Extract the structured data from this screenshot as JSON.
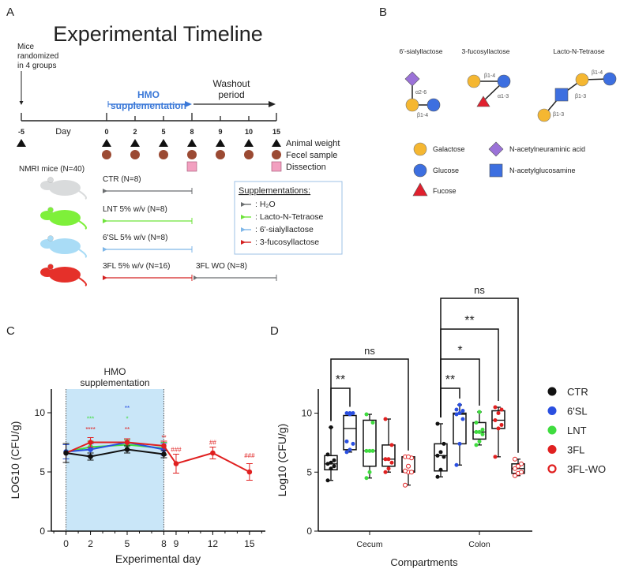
{
  "panel_labels": {
    "a": "A",
    "b": "B",
    "c": "C",
    "d": "D"
  },
  "timeline": {
    "title": "Experimental Timeline",
    "randomized": [
      "Mice",
      "randomized",
      "in 4 groups"
    ],
    "hmo_label": [
      "HMO",
      "supplementation"
    ],
    "washout_label": [
      "Washout",
      "period"
    ],
    "day_label": "Day",
    "days": [
      "-5",
      "0",
      "2",
      "5",
      "8",
      "9",
      "10",
      "15"
    ],
    "legend": {
      "weight": "Animal weight",
      "fecal": "Fecel sample",
      "dissection": "Dissection"
    },
    "cohort": "NMRI mice (N=40)",
    "groups": [
      {
        "label": "CTR (N=8)",
        "color": "#6b6e70",
        "mouse": "#d9dbdc"
      },
      {
        "label": "LNT 5% w/v (N=8)",
        "color": "#6ee33a",
        "mouse": "#7ef03a"
      },
      {
        "label": "6'SL 5% w/v (N=8)",
        "color": "#7fb7e8",
        "mouse": "#a9dcf6"
      },
      {
        "label": "3FL 5% w/v (N=16)",
        "color": "#d42020",
        "mouse": "#e5302a"
      }
    ],
    "washout_group": "3FL WO (N=8)",
    "supp_title": "Supplementations:",
    "supp_items": [
      ": H₂O",
      ": Lacto-N-Tetraose",
      ": 6'-sialyllactose",
      ": 3-fucosyllactose"
    ],
    "colors": {
      "hmo": "#3a78d8",
      "dot": "#9b4a33",
      "dissection": "#f2a0c0"
    }
  },
  "hmo": {
    "names": [
      "6'-sialyllactose",
      "3-fucosyllactose",
      "Lacto-N-Tetraose"
    ],
    "linkages": {
      "sl_a": "α2-6",
      "sl_b": "β1-4",
      "fl_b": "β1-4",
      "fl_a": "α1-3",
      "lnt_1": "β1-4",
      "lnt_2": "β1-3",
      "lnt_3": "β1-3"
    },
    "legend": [
      "Galactose",
      "Glucose",
      "Fucose",
      "N-acetylneuraminic acid",
      "N-acetylglucosamine"
    ],
    "colors": {
      "galactose": "#f5b731",
      "glucose": "#3d6fe0",
      "fucose": "#e0202e",
      "neuac": "#9b72d8",
      "glcnac": "#3d6fe0"
    }
  },
  "chart_data": [
    {
      "type": "line",
      "title": "",
      "shaded_region_label": [
        "HMO",
        "supplementation"
      ],
      "shaded_region": [
        0,
        8
      ],
      "xlabel": "Experimental day",
      "ylabel": "LOG10 (CFU/g)",
      "xticks": [
        0,
        2,
        5,
        8,
        9,
        12,
        15
      ],
      "yticks": [
        0,
        5,
        10
      ],
      "xlim": [
        -1.2,
        16.3
      ],
      "ylim": [
        0,
        12
      ],
      "series": [
        {
          "name": "LNT",
          "color": "#3fdc3f",
          "x": [
            0,
            2,
            5,
            8
          ],
          "y": [
            6.7,
            7.1,
            7.3,
            7.0
          ],
          "err": [
            0.6,
            0.5,
            0.4,
            0.5
          ]
        },
        {
          "name": "6'SL",
          "color": "#2a4fe0",
          "x": [
            0,
            2,
            5,
            8
          ],
          "y": [
            6.7,
            6.9,
            7.5,
            6.9
          ],
          "err": [
            0.6,
            0.5,
            0.3,
            0.5
          ]
        },
        {
          "name": "3FL",
          "color": "#e02020",
          "x": [
            0,
            2,
            5,
            8,
            9,
            12,
            15
          ],
          "y": [
            6.6,
            7.5,
            7.5,
            7.2,
            5.7,
            6.6,
            5.0
          ],
          "err": [
            0.8,
            0.4,
            0.3,
            0.4,
            0.8,
            0.5,
            0.7
          ]
        },
        {
          "name": "CTR",
          "color": "#111111",
          "x": [
            0,
            2,
            5,
            8
          ],
          "y": [
            6.6,
            6.3,
            6.9,
            6.5
          ],
          "err": [
            0.8,
            0.3,
            0.3,
            0.3
          ]
        }
      ],
      "annotations": [
        {
          "x": 2,
          "y": 9.3,
          "text": "***",
          "color": "#3fdc3f"
        },
        {
          "x": 2,
          "y": 8.4,
          "text": "****",
          "color": "#e02020"
        },
        {
          "x": 5,
          "y": 10.2,
          "text": "**",
          "color": "#2a4fe0"
        },
        {
          "x": 5,
          "y": 9.3,
          "text": "*",
          "color": "#3fdc3f"
        },
        {
          "x": 5,
          "y": 8.4,
          "text": "**",
          "color": "#e02020"
        },
        {
          "x": 8,
          "y": 7.7,
          "text": "**",
          "color": "#e02020"
        },
        {
          "x": 9,
          "y": 6.7,
          "text": "###",
          "color": "#e02020"
        },
        {
          "x": 12,
          "y": 7.3,
          "text": "##",
          "color": "#e02020"
        },
        {
          "x": 15,
          "y": 6.2,
          "text": "###",
          "color": "#e02020"
        }
      ]
    },
    {
      "type": "box",
      "xlabel": "Compartments",
      "ylabel": "Log10 (CFU/g)",
      "categories": [
        "Cecum",
        "Colon"
      ],
      "yticks": [
        0,
        5,
        10
      ],
      "ylim": [
        0,
        12
      ],
      "groups": [
        {
          "name": "CTR",
          "color": "#111111",
          "hollow": false
        },
        {
          "name": "6'SL",
          "color": "#2a4fe0",
          "hollow": false
        },
        {
          "name": "LNT",
          "color": "#3fdc3f",
          "hollow": false
        },
        {
          "name": "3FL",
          "color": "#e02020",
          "hollow": false
        },
        {
          "name": "3FL-WO",
          "color": "#e02020",
          "hollow": true
        }
      ],
      "boxes": {
        "Cecum": [
          {
            "min": 4.3,
            "q1": 5.2,
            "median": 5.7,
            "q3": 6.4,
            "max": 8.8,
            "points": [
              4.3,
              5.3,
              5.5,
              5.7,
              5.8,
              6.0,
              6.5,
              8.8
            ]
          },
          {
            "min": 6.7,
            "q1": 6.9,
            "median": 8.7,
            "q3": 9.8,
            "max": 10.0,
            "points": [
              6.7,
              6.9,
              7.4,
              7.6,
              9.9,
              10.0,
              10.0,
              10.0
            ]
          },
          {
            "min": 4.5,
            "q1": 5.5,
            "median": 6.8,
            "q3": 9.4,
            "max": 9.9,
            "points": [
              4.5,
              5.0,
              6.8,
              6.8,
              6.8,
              9.2,
              9.9
            ]
          },
          {
            "min": 5.0,
            "q1": 5.5,
            "median": 6.1,
            "q3": 7.3,
            "max": 9.5,
            "points": [
              5.0,
              5.3,
              5.8,
              6.1,
              6.1,
              7.3,
              9.5
            ]
          },
          {
            "min": 3.9,
            "q1": 5.0,
            "median": 5.1,
            "q3": 6.3,
            "max": 6.3,
            "points": [
              3.9,
              5.0,
              5.0,
              5.1,
              5.5,
              6.2,
              6.3,
              6.3
            ]
          }
        ],
        "Colon": [
          {
            "min": 4.6,
            "q1": 5.1,
            "median": 6.4,
            "q3": 7.4,
            "max": 9.1,
            "points": [
              4.6,
              5.2,
              6.3,
              6.4,
              6.7,
              7.4,
              9.1
            ]
          },
          {
            "min": 5.6,
            "q1": 7.4,
            "median": 9.9,
            "q3": 10.0,
            "max": 10.7,
            "points": [
              5.6,
              7.4,
              9.5,
              9.9,
              10.0,
              10.2,
              10.3,
              10.7
            ]
          },
          {
            "min": 7.3,
            "q1": 7.8,
            "median": 8.4,
            "q3": 9.2,
            "max": 10.1,
            "points": [
              7.3,
              7.6,
              8.2,
              8.4,
              8.4,
              8.6,
              9.2,
              10.1
            ]
          },
          {
            "min": 6.3,
            "q1": 8.7,
            "median": 9.4,
            "q3": 10.2,
            "max": 10.5,
            "points": [
              6.3,
              8.7,
              9.0,
              9.4,
              10.0,
              10.3,
              10.5
            ]
          },
          {
            "min": 4.7,
            "q1": 4.9,
            "median": 5.3,
            "q3": 5.7,
            "max": 6.1,
            "points": [
              4.7,
              4.9,
              5.0,
              5.3,
              5.5,
              5.7,
              6.1
            ]
          }
        ]
      },
      "comparisons": [
        {
          "category": "Cecum",
          "from": 0,
          "to": 1,
          "label": "**"
        },
        {
          "category": "Cecum",
          "from": 0,
          "to": 4,
          "label": "ns"
        },
        {
          "category": "Colon",
          "from": 0,
          "to": 1,
          "label": "**"
        },
        {
          "category": "Colon",
          "from": 0,
          "to": 2,
          "label": "*"
        },
        {
          "category": "Colon",
          "from": 0,
          "to": 3,
          "label": "**"
        },
        {
          "category": "Colon",
          "from": 0,
          "to": 4,
          "label": "ns"
        }
      ],
      "legend_position": "right"
    }
  ]
}
